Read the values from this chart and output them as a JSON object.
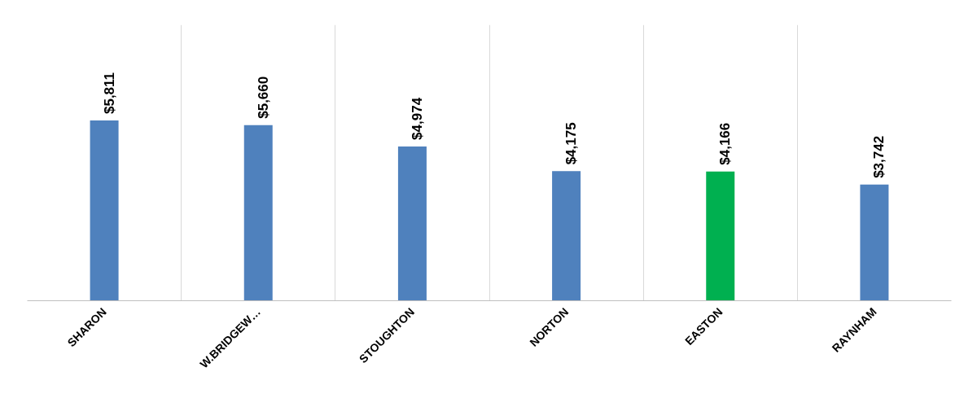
{
  "chart_data": {
    "type": "bar",
    "categories": [
      "SHARON",
      "W.BRIDGEW…",
      "STOUGHTON",
      "NORTON",
      "EASTON",
      "RAYNHAM"
    ],
    "values": [
      5811,
      5660,
      4974,
      4175,
      4166,
      3742
    ],
    "colors": [
      "#4f81bd",
      "#4f81bd",
      "#4f81bd",
      "#4f81bd",
      "#00b050",
      "#4f81bd"
    ],
    "value_labels": [
      "$5,811",
      "$5,660",
      "$4,974",
      "$4,175",
      "$4,166",
      "$3,742"
    ],
    "grid": "x"
  }
}
